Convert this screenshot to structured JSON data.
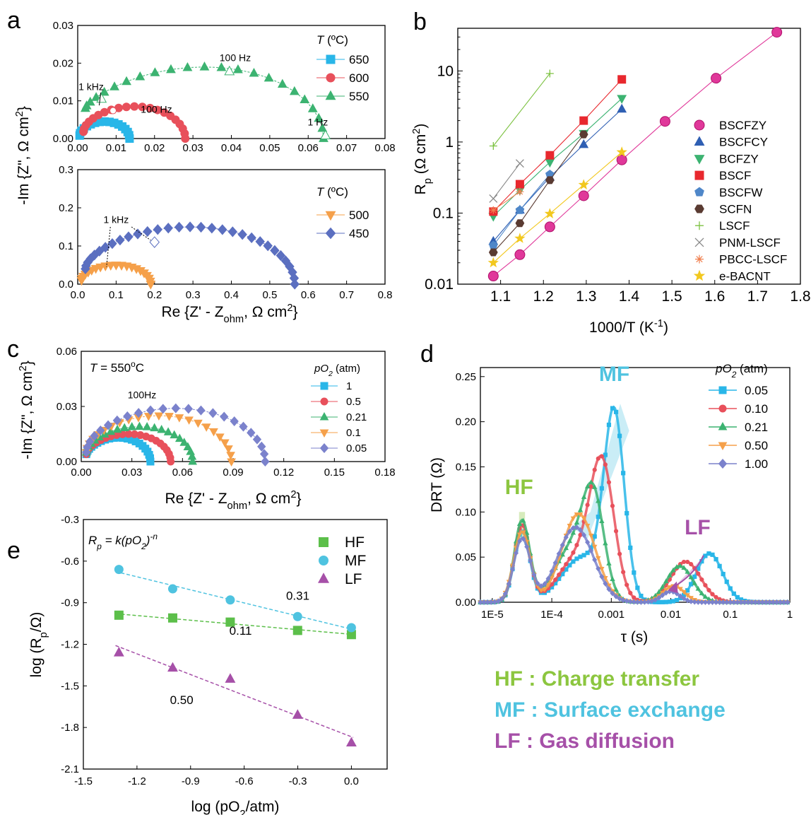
{
  "colors": {
    "blue": "#29b6e8",
    "red": "#e8505b",
    "green": "#3cb371",
    "orange": "#f5a04a",
    "purple": "#5b6fc0",
    "navy": "#2f5fb3",
    "brown": "#5a3b32",
    "lime": "#7dc242",
    "grey": "#888888",
    "yellow": "#f2c81f",
    "magenta": "#e0389a",
    "hf": "#8cc63f",
    "mf": "#4fc3e0",
    "lf": "#a650a8"
  },
  "chart_data": [
    {
      "id": "a-top",
      "panel_label": "a",
      "type": "scatter",
      "xlim": [
        0,
        0.08
      ],
      "ylim": [
        0,
        0.03
      ],
      "xticks": [
        "0.00",
        "0.01",
        "0.02",
        "0.03",
        "0.04",
        "0.05",
        "0.06",
        "0.07",
        "0.08"
      ],
      "yticks": [
        "0.00",
        "0.01",
        "0.02",
        "0.03"
      ],
      "legend_title": "T (ºC)",
      "series": [
        {
          "name": "650",
          "marker": "square",
          "color": "#29b6e8",
          "arc": [
            0.0005,
            0.0135,
            0.0045,
            0.0008
          ]
        },
        {
          "name": "600",
          "marker": "circle",
          "color": "#e8505b",
          "arc": [
            0.0015,
            0.028,
            0.0085,
            0.0018
          ]
        },
        {
          "name": "550",
          "marker": "triangle-up",
          "color": "#3cb371",
          "arc": [
            0.002,
            0.064,
            0.019,
            0.008
          ]
        }
      ],
      "annotations": [
        {
          "text": "100 Hz",
          "x": 0.041,
          "y": 0.0205
        },
        {
          "text": "1 kHz",
          "x": 0.0035,
          "y": 0.0128
        },
        {
          "text": "100 Hz",
          "x": 0.0205,
          "y": 0.0068
        },
        {
          "text": "1 Hz",
          "x": 0.0625,
          "y": 0.0035
        }
      ]
    },
    {
      "id": "a-bottom",
      "type": "scatter",
      "xlim": [
        0,
        0.8
      ],
      "ylim": [
        0,
        0.3
      ],
      "xticks": [
        "0.0",
        "0.1",
        "0.2",
        "0.3",
        "0.4",
        "0.5",
        "0.6",
        "0.7",
        "0.8"
      ],
      "yticks": [
        "0.0",
        "0.1",
        "0.2",
        "0.3"
      ],
      "xlabel": "Re {Z' - Z_ohm, Ω cm²}",
      "ylabel": "-Im {Z\", Ω cm²}",
      "legend_title": "T (ºC)",
      "series": [
        {
          "name": "500",
          "marker": "triangle-down",
          "color": "#f5a04a",
          "arc": [
            0.01,
            0.19,
            0.05,
            0.01
          ]
        },
        {
          "name": "450",
          "marker": "diamond",
          "color": "#5b6fc0",
          "arc": [
            0.02,
            0.565,
            0.15,
            0.04
          ]
        }
      ],
      "annotations": [
        {
          "text": "1 kHz",
          "x": 0.1,
          "y": 0.16
        }
      ]
    },
    {
      "id": "b",
      "panel_label": "b",
      "type": "scatter",
      "xlim": [
        1.0,
        1.8
      ],
      "ylim_log10": [
        -2,
        1.6
      ],
      "xticks": [
        "1.1",
        "1.2",
        "1.3",
        "1.4",
        "1.5",
        "1.6",
        "1.7",
        "1.8"
      ],
      "yticks": [
        "0.01",
        "0.1",
        "1",
        "10"
      ],
      "xlabel": "1000/T (K⁻¹)",
      "ylabel": "Rp (Ω cm²)",
      "series": [
        {
          "name": "BSCFZY",
          "marker": "ball",
          "color": "#e0389a",
          "x": [
            1.083,
            1.145,
            1.215,
            1.294,
            1.383,
            1.484,
            1.603,
            1.745
          ],
          "y": [
            0.013,
            0.026,
            0.064,
            0.175,
            0.56,
            1.95,
            7.9,
            35
          ]
        },
        {
          "name": "BSCFCY",
          "marker": "triangle-up",
          "color": "#2f5fb3",
          "x": [
            1.083,
            1.145,
            1.215,
            1.294,
            1.383
          ],
          "y": [
            0.04,
            0.11,
            0.32,
            0.92,
            2.9
          ]
        },
        {
          "name": "BCFZY",
          "marker": "triangle-down",
          "color": "#3cb371",
          "x": [
            1.083,
            1.145,
            1.215,
            1.294,
            1.383
          ],
          "y": [
            0.09,
            0.21,
            0.52,
            1.32,
            4.1
          ]
        },
        {
          "name": "BSCF",
          "marker": "square",
          "color": "#e8282e",
          "x": [
            1.083,
            1.145,
            1.215,
            1.294,
            1.383
          ],
          "y": [
            0.105,
            0.255,
            0.65,
            2.0,
            7.6
          ]
        },
        {
          "name": "BSCFW",
          "marker": "pentagon",
          "color": "#4f87c9",
          "x": [
            1.083,
            1.145,
            1.215
          ],
          "y": [
            0.035,
            0.11,
            0.35
          ]
        },
        {
          "name": "SCFN",
          "marker": "hexagon",
          "color": "#5a3b32",
          "x": [
            1.083,
            1.145,
            1.215,
            1.294
          ],
          "y": [
            0.028,
            0.072,
            0.29,
            1.28
          ]
        },
        {
          "name": "LSCF",
          "marker": "plus",
          "color": "#7dc242",
          "x": [
            1.083,
            1.215
          ],
          "y": [
            0.88,
            9.2
          ]
        },
        {
          "name": "PNM-LSCF",
          "marker": "cross",
          "color": "#888888",
          "x": [
            1.083,
            1.145
          ],
          "y": [
            0.16,
            0.5
          ]
        },
        {
          "name": "PBCC-LSCF",
          "marker": "asterisk",
          "color": "#f08050",
          "x": [
            1.083,
            1.145
          ],
          "y": [
            0.11,
            0.2
          ]
        },
        {
          "name": "e-BACNT",
          "marker": "star",
          "color": "#f2c81f",
          "x": [
            1.083,
            1.145,
            1.215,
            1.294,
            1.383
          ],
          "y": [
            0.02,
            0.044,
            0.098,
            0.25,
            0.72
          ]
        }
      ]
    },
    {
      "id": "c",
      "panel_label": "c",
      "type": "scatter",
      "xlim": [
        0,
        0.18
      ],
      "ylim": [
        0,
        0.06
      ],
      "xticks": [
        "0.00",
        "0.03",
        "0.06",
        "0.09",
        "0.12",
        "0.15",
        "0.18"
      ],
      "yticks": [
        "0.00",
        "0.03",
        "0.06"
      ],
      "xlabel": "Re {Z' - Z_ohm, Ω cm²}",
      "ylabel": "-Im {Z\", Ω cm²}",
      "legend_title": "pO2 (atm)",
      "annotation_temp": "T = 550ºC",
      "series": [
        {
          "name": "1",
          "marker": "square",
          "color": "#29b6e8",
          "arc": [
            0.003,
            0.041,
            0.013,
            0.004
          ]
        },
        {
          "name": "0.5",
          "marker": "circle",
          "color": "#e8505b",
          "arc": [
            0.003,
            0.053,
            0.015,
            0.004
          ]
        },
        {
          "name": "0.21",
          "marker": "triangle-up",
          "color": "#3cb371",
          "arc": [
            0.003,
            0.066,
            0.019,
            0.005
          ]
        },
        {
          "name": "0.1",
          "marker": "triangle-down",
          "color": "#f5a04a",
          "arc": [
            0.003,
            0.089,
            0.025,
            0.005
          ]
        },
        {
          "name": "0.05",
          "marker": "diamond",
          "color": "#7b82cc",
          "arc": [
            0.003,
            0.109,
            0.029,
            0.005
          ]
        }
      ],
      "annotations": [
        {
          "text": "100Hz",
          "x": 0.036,
          "y": 0.0345
        }
      ]
    },
    {
      "id": "d",
      "panel_label": "d",
      "type": "line",
      "xlim_log10": [
        -5.2,
        0
      ],
      "ylim": [
        0,
        0.26
      ],
      "xticks": [
        "1E-5",
        "1E-4",
        "0.001",
        "0.01",
        "0.1",
        "1"
      ],
      "yticks": [
        "0.00",
        "0.05",
        "0.10",
        "0.15",
        "0.20",
        "0.25"
      ],
      "xlabel": "τ (s)",
      "ylabel": "DRT (Ω)",
      "legend_title": "pO2 (atm)",
      "region_labels": [
        "HF",
        "MF",
        "LF"
      ],
      "series": [
        {
          "name": "0.05",
          "marker": "square",
          "color": "#29b6e8",
          "peaks": [
            [
              -4.5,
              0.078,
              0.13
            ],
            [
              -3.48,
              0.05,
              0.35
            ],
            [
              -2.95,
              0.2,
              0.17
            ],
            [
              -1.35,
              0.054,
              0.22
            ]
          ]
        },
        {
          "name": "0.10",
          "marker": "circle",
          "color": "#e8505b",
          "peaks": [
            [
              -4.5,
              0.085,
              0.13
            ],
            [
              -3.55,
              0.05,
              0.33
            ],
            [
              -3.15,
              0.137,
              0.2
            ],
            [
              -1.75,
              0.045,
              0.25
            ]
          ]
        },
        {
          "name": "0.21",
          "marker": "triangle-up",
          "color": "#3cb371",
          "peaks": [
            [
              -4.5,
              0.09,
              0.13
            ],
            [
              -3.65,
              0.06,
              0.3
            ],
            [
              -3.3,
              0.1,
              0.18
            ],
            [
              -1.85,
              0.04,
              0.22
            ]
          ]
        },
        {
          "name": "0.50",
          "marker": "triangle-down",
          "color": "#f5a04a",
          "peaks": [
            [
              -4.5,
              0.078,
              0.14
            ],
            [
              -3.55,
              0.098,
              0.28
            ],
            [
              -1.95,
              0.018,
              0.18
            ]
          ]
        },
        {
          "name": "1.00",
          "marker": "diamond",
          "color": "#7b82cc",
          "peaks": [
            [
              -4.5,
              0.07,
              0.14
            ],
            [
              -3.6,
              0.083,
              0.3
            ],
            [
              -2.0,
              0.012,
              0.15
            ]
          ]
        }
      ]
    },
    {
      "id": "e",
      "panel_label": "e",
      "type": "scatter",
      "xlim": [
        -1.5,
        0.2
      ],
      "ylim": [
        -2.1,
        -0.3
      ],
      "xticks": [
        "-1.5",
        "-1.2",
        "-0.9",
        "-0.6",
        "-0.3",
        "0.0"
      ],
      "yticks": [
        "-2.1",
        "-1.8",
        "-1.5",
        "-1.2",
        "-0.9",
        "-0.6",
        "-0.3"
      ],
      "xlabel": "log (pO2/atm)",
      "ylabel": "log (Rp/Ω)",
      "formula": "Rp = k(pO2)-n",
      "series": [
        {
          "name": "HF",
          "marker": "square",
          "color": "#5cbf4a",
          "x": [
            -1.301,
            -1.0,
            -0.678,
            -0.301,
            0.0
          ],
          "y": [
            -0.99,
            -1.01,
            -1.04,
            -1.1,
            -1.13
          ],
          "slope_label": "0.11"
        },
        {
          "name": "MF",
          "marker": "circle",
          "color": "#4fc3e0",
          "x": [
            -1.301,
            -1.0,
            -0.678,
            -0.301,
            0.0
          ],
          "y": [
            -0.66,
            -0.8,
            -0.88,
            -1.0,
            -1.08
          ],
          "slope_label": "0.31"
        },
        {
          "name": "LF",
          "marker": "triangle-up",
          "color": "#a650a8",
          "x": [
            -1.301,
            -1.0,
            -0.678,
            -0.301,
            0.0
          ],
          "y": [
            -1.26,
            -1.37,
            -1.45,
            -1.71,
            -1.91
          ],
          "slope_label": "0.50"
        }
      ]
    }
  ],
  "legend_text": {
    "hf": "HF : Charge transfer",
    "mf": "MF : Surface exchange",
    "lf": "LF : Gas diffusion"
  }
}
